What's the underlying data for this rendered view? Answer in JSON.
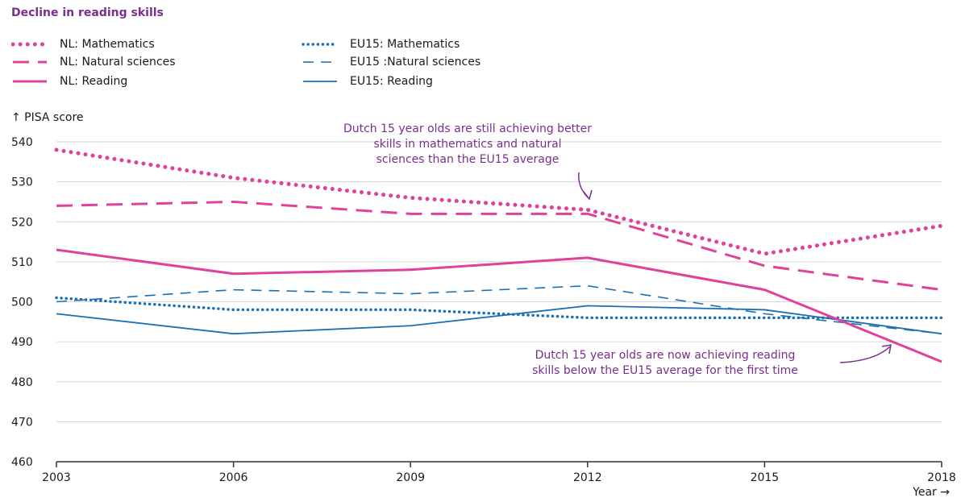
{
  "chart_data": {
    "type": "line",
    "title": "Decline in reading skills",
    "ylabel": "PISA score",
    "xlabel": "Year",
    "x": [
      2003,
      2006,
      2009,
      2012,
      2015,
      2018
    ],
    "ylim": [
      460,
      540
    ],
    "yticks": [
      460,
      470,
      480,
      490,
      500,
      510,
      520,
      530,
      540
    ],
    "grid": true,
    "legend_position": "top-left",
    "series": [
      {
        "name": "NL: Mathematics",
        "color": "#e0419b",
        "style": "dotted",
        "values": [
          538,
          531,
          526,
          523,
          512,
          519
        ]
      },
      {
        "name": "NL: Natural sciences",
        "color": "#e0419b",
        "style": "dashed",
        "values": [
          524,
          525,
          522,
          522,
          509,
          503
        ]
      },
      {
        "name": "NL: Reading",
        "color": "#e0419b",
        "style": "solid",
        "values": [
          513,
          507,
          508,
          511,
          503,
          485
        ]
      },
      {
        "name": "EU15: Mathematics",
        "color": "#1a6fb5",
        "style": "dotted",
        "values": [
          501,
          498,
          498,
          496,
          496,
          496
        ]
      },
      {
        "name": "EU15 :Natural sciences",
        "color": "#1a6fb5",
        "style": "dashed",
        "values": [
          500,
          503,
          502,
          504,
          497,
          492
        ]
      },
      {
        "name": "EU15: Reading",
        "color": "#1a6fb5",
        "style": "solid",
        "values": [
          497,
          492,
          494,
          499,
          498,
          492
        ]
      }
    ],
    "annotations": [
      "Dutch 15 year olds are still achieving better skills in mathematics and natural sciences than the EU15 average",
      "Dutch 15 year olds are now achieving reading skills below the EU15 average for the first time"
    ]
  },
  "ui": {
    "annotation_top": [
      "Dutch 15 year olds are still achieving better",
      "skills in mathematics and natural",
      "sciences than the EU15 average"
    ],
    "annotation_bottom": [
      "Dutch 15 year olds are now achieving reading",
      "skills below the EU15 average for the first time"
    ],
    "ylabel_text": "↑ PISA score",
    "xlabel_text": "Year →"
  }
}
